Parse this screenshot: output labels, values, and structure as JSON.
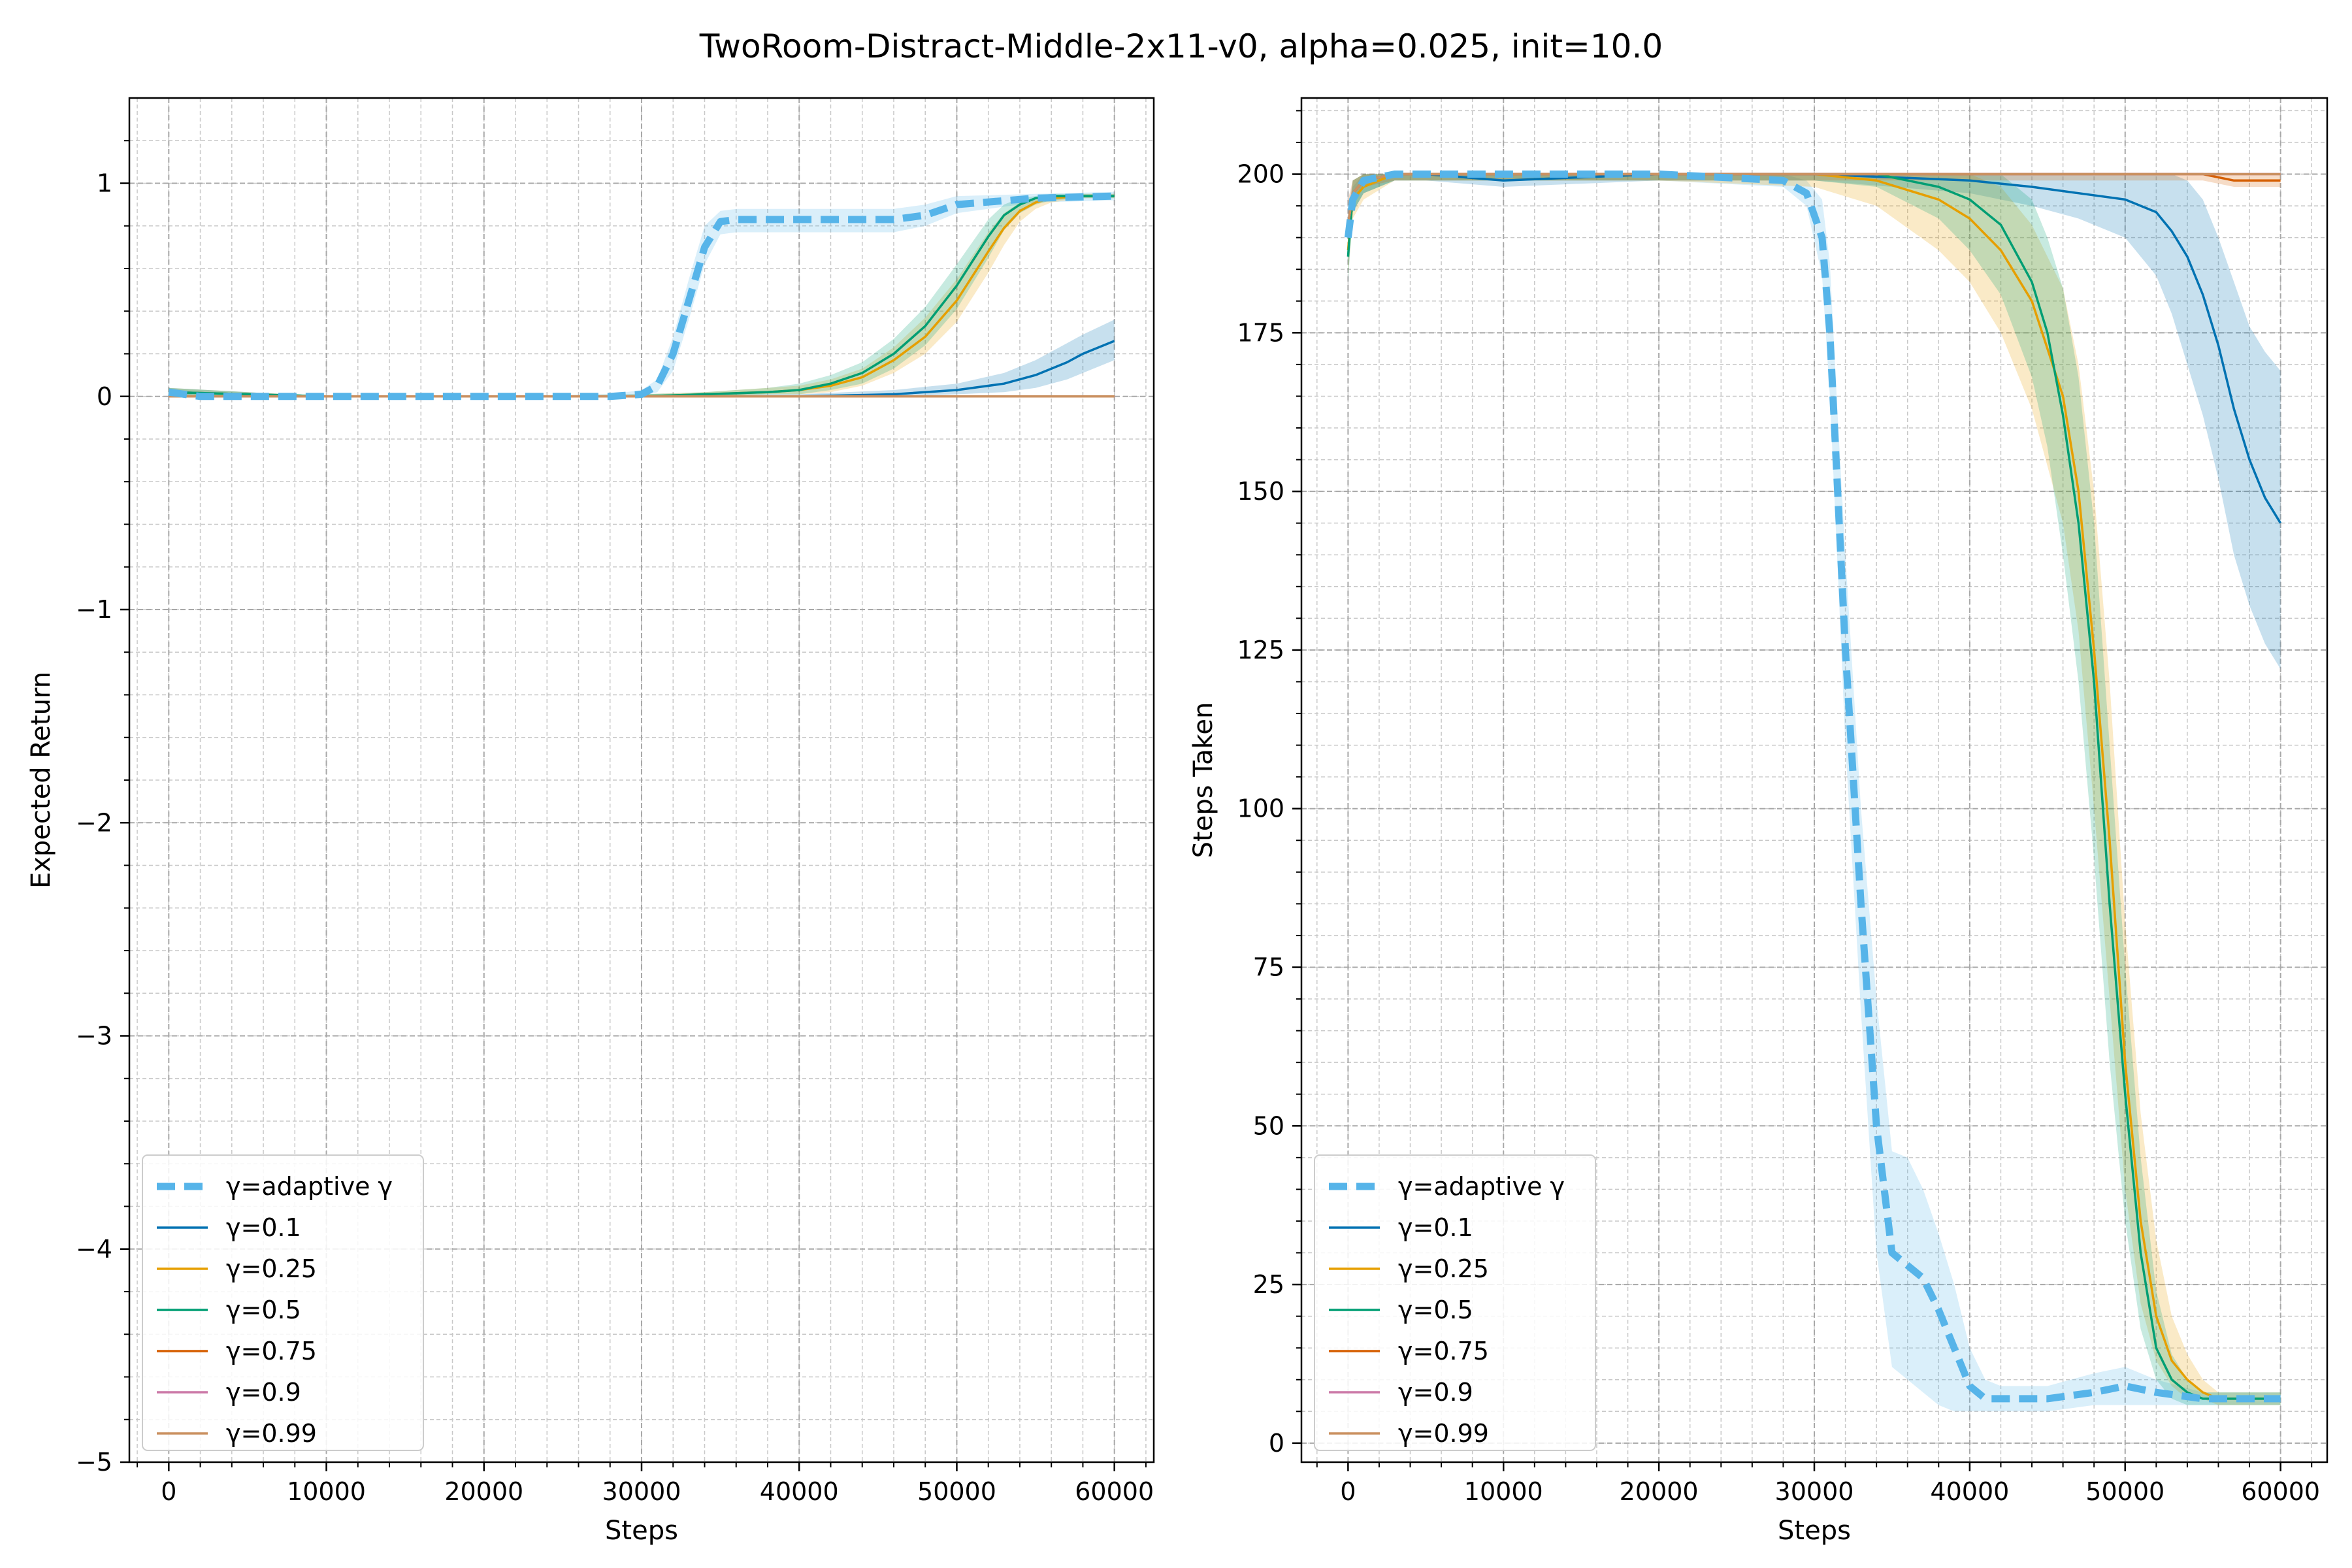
{
  "figure": {
    "title": "TwoRoom-Distract-Middle-2x11-v0, alpha=0.025, init=10.0"
  },
  "legend_entries": [
    {
      "label": "γ=adaptive γ",
      "color": "#56B4E9",
      "style": "dashed"
    },
    {
      "label": "γ=0.1",
      "color": "#0072B2",
      "style": "solid"
    },
    {
      "label": "γ=0.25",
      "color": "#E69F00",
      "style": "solid"
    },
    {
      "label": "γ=0.5",
      "color": "#009E73",
      "style": "solid"
    },
    {
      "label": "γ=0.75",
      "color": "#D55E00",
      "style": "solid"
    },
    {
      "label": "γ=0.9",
      "color": "#CC79A7",
      "style": "solid"
    },
    {
      "label": "γ=0.99",
      "color": "#CA9161",
      "style": "solid"
    }
  ],
  "chart_data": [
    {
      "type": "line",
      "xlabel": "Steps",
      "ylabel": "Expected Return",
      "xlim": [
        -2500,
        62500
      ],
      "ylim": [
        -5,
        1.4
      ],
      "xticks": [
        "0",
        "10000",
        "20000",
        "30000",
        "40000",
        "50000",
        "60000"
      ],
      "yticks": [
        "1",
        "0",
        "−1",
        "−2",
        "−3",
        "−4",
        "−5"
      ],
      "grid": true,
      "legend_position": "lower-left",
      "series": [
        {
          "name": "γ=adaptive γ",
          "color": "#56B4E9",
          "x": [
            0,
            2000,
            10000,
            20000,
            28000,
            30000,
            31000,
            32000,
            33000,
            34000,
            35000,
            36000,
            40000,
            46000,
            48000,
            50000,
            55000,
            60000
          ],
          "y": [
            0.02,
            0.0,
            0.0,
            0.0,
            0.0,
            0.01,
            0.05,
            0.2,
            0.45,
            0.7,
            0.82,
            0.83,
            0.83,
            0.83,
            0.85,
            0.9,
            0.93,
            0.94
          ],
          "band_lower": [
            0.0,
            0.0,
            0.0,
            0.0,
            0.0,
            0.0,
            0.02,
            0.12,
            0.36,
            0.62,
            0.76,
            0.77,
            0.77,
            0.77,
            0.8,
            0.86,
            0.91,
            0.92
          ],
          "band_upper": [
            0.04,
            0.0,
            0.0,
            0.0,
            0.01,
            0.03,
            0.08,
            0.28,
            0.55,
            0.8,
            0.87,
            0.88,
            0.88,
            0.88,
            0.9,
            0.94,
            0.95,
            0.96
          ]
        },
        {
          "name": "γ=0.1",
          "color": "#0072B2",
          "x": [
            0,
            10000,
            20000,
            30000,
            40000,
            46000,
            50000,
            53000,
            55000,
            57000,
            58000,
            60000
          ],
          "y": [
            0.02,
            0.0,
            0.0,
            0.0,
            0.0,
            0.01,
            0.03,
            0.06,
            0.1,
            0.16,
            0.2,
            0.26
          ],
          "band_lower": [
            0.0,
            0.0,
            0.0,
            0.0,
            0.0,
            0.0,
            0.01,
            0.02,
            0.04,
            0.08,
            0.11,
            0.17
          ],
          "band_upper": [
            0.04,
            0.0,
            0.0,
            0.01,
            0.01,
            0.03,
            0.06,
            0.11,
            0.17,
            0.25,
            0.29,
            0.36
          ]
        },
        {
          "name": "γ=0.25",
          "color": "#E69F00",
          "x": [
            0,
            10000,
            20000,
            30000,
            34000,
            38000,
            40000,
            42000,
            44000,
            46000,
            48000,
            50000,
            52000,
            53000,
            54000,
            55000,
            56000,
            58000,
            60000
          ],
          "y": [
            0.02,
            0.0,
            0.0,
            0.0,
            0.01,
            0.02,
            0.03,
            0.05,
            0.09,
            0.17,
            0.28,
            0.45,
            0.68,
            0.79,
            0.87,
            0.91,
            0.93,
            0.94,
            0.94
          ],
          "band_lower": [
            0.0,
            0.0,
            0.0,
            0.0,
            0.0,
            0.01,
            0.01,
            0.02,
            0.05,
            0.11,
            0.2,
            0.35,
            0.58,
            0.71,
            0.82,
            0.88,
            0.91,
            0.93,
            0.93
          ],
          "band_upper": [
            0.04,
            0.0,
            0.0,
            0.01,
            0.02,
            0.04,
            0.05,
            0.08,
            0.13,
            0.23,
            0.37,
            0.55,
            0.77,
            0.86,
            0.91,
            0.93,
            0.94,
            0.95,
            0.95
          ]
        },
        {
          "name": "γ=0.5",
          "color": "#009E73",
          "x": [
            0,
            10000,
            20000,
            30000,
            34000,
            38000,
            40000,
            42000,
            44000,
            46000,
            48000,
            50000,
            52000,
            53000,
            54000,
            55000,
            56000,
            58000,
            60000
          ],
          "y": [
            0.02,
            0.0,
            0.0,
            0.0,
            0.01,
            0.02,
            0.03,
            0.06,
            0.11,
            0.2,
            0.33,
            0.52,
            0.75,
            0.85,
            0.9,
            0.93,
            0.94,
            0.94,
            0.94
          ],
          "band_lower": [
            0.0,
            0.0,
            0.0,
            0.0,
            0.0,
            0.01,
            0.01,
            0.03,
            0.06,
            0.13,
            0.24,
            0.41,
            0.65,
            0.78,
            0.86,
            0.9,
            0.92,
            0.93,
            0.93
          ],
          "band_upper": [
            0.04,
            0.0,
            0.0,
            0.01,
            0.02,
            0.04,
            0.06,
            0.1,
            0.16,
            0.27,
            0.42,
            0.62,
            0.83,
            0.9,
            0.93,
            0.94,
            0.95,
            0.95,
            0.95
          ]
        },
        {
          "name": "γ=0.75",
          "color": "#D55E00",
          "x": [
            0,
            60000
          ],
          "y": [
            0.0,
            0.0
          ]
        },
        {
          "name": "γ=0.9",
          "color": "#CC79A7",
          "x": [
            0,
            60000
          ],
          "y": [
            0.0,
            0.0
          ]
        },
        {
          "name": "γ=0.99",
          "color": "#CA9161",
          "x": [
            0,
            60000
          ],
          "y": [
            0.0,
            0.0
          ]
        }
      ]
    },
    {
      "type": "line",
      "xlabel": "Steps",
      "ylabel": "Steps Taken",
      "xlim": [
        -3000,
        63000
      ],
      "ylim": [
        -3,
        212
      ],
      "xticks": [
        "0",
        "10000",
        "20000",
        "30000",
        "40000",
        "50000",
        "60000"
      ],
      "yticks": [
        "200",
        "175",
        "150",
        "125",
        "100",
        "75",
        "50",
        "25",
        "0"
      ],
      "grid": true,
      "legend_position": "lower-left",
      "series": [
        {
          "name": "γ=adaptive γ",
          "color": "#56B4E9",
          "x": [
            0,
            300,
            1000,
            3000,
            5000,
            10000,
            20000,
            28000,
            29500,
            30500,
            31000,
            31500,
            32000,
            33000,
            34000,
            35000,
            36000,
            37000,
            38000,
            39000,
            40000,
            41000,
            42000,
            45000,
            48000,
            50000,
            52000,
            55000,
            60000
          ],
          "y": [
            190,
            196,
            199,
            200,
            200,
            200,
            200,
            199,
            197,
            190,
            175,
            150,
            125,
            85,
            50,
            30,
            28,
            26,
            21,
            15,
            9,
            7,
            7,
            7,
            8,
            9,
            8,
            7,
            7
          ],
          "band_lower": [
            186,
            194,
            197,
            199,
            199,
            199,
            199,
            198,
            195,
            184,
            165,
            138,
            110,
            68,
            30,
            12,
            10,
            8,
            6,
            5,
            5,
            5,
            5,
            5,
            6,
            6,
            6,
            6,
            6
          ],
          "band_upper": [
            194,
            198,
            200,
            200,
            200,
            200,
            200,
            200,
            199,
            196,
            186,
            162,
            140,
            100,
            70,
            46,
            45,
            40,
            33,
            25,
            15,
            10,
            9,
            9,
            11,
            12,
            10,
            8,
            8
          ]
        },
        {
          "name": "γ=0.1",
          "color": "#0072B2",
          "x": [
            0,
            300,
            1000,
            3000,
            5000,
            10000,
            20000,
            30000,
            40000,
            44000,
            47000,
            50000,
            52000,
            53000,
            54000,
            55000,
            56000,
            57000,
            58000,
            59000,
            60000
          ],
          "y": [
            190,
            197,
            199,
            200,
            200,
            199,
            200,
            200,
            199,
            198,
            197,
            196,
            194,
            191,
            187,
            181,
            173,
            163,
            155,
            149,
            145
          ],
          "band_lower": [
            186,
            194,
            197,
            199,
            199,
            198,
            199,
            199,
            197,
            195,
            193,
            190,
            184,
            178,
            170,
            162,
            152,
            140,
            132,
            126,
            122
          ],
          "band_upper": [
            194,
            199,
            200,
            200,
            200,
            200,
            200,
            200,
            200,
            200,
            200,
            200,
            200,
            200,
            199,
            196,
            190,
            183,
            176,
            172,
            169
          ]
        },
        {
          "name": "γ=0.25",
          "color": "#E69F00",
          "x": [
            0,
            300,
            1000,
            3000,
            5000,
            10000,
            20000,
            30000,
            34000,
            38000,
            40000,
            42000,
            44000,
            46000,
            47000,
            48000,
            49000,
            50000,
            51000,
            52000,
            53000,
            54000,
            55000,
            56000,
            58000,
            60000
          ],
          "y": [
            188,
            196,
            198,
            200,
            200,
            200,
            200,
            200,
            199,
            196,
            193,
            188,
            180,
            165,
            150,
            125,
            95,
            60,
            35,
            20,
            13,
            10,
            8,
            7,
            7,
            7
          ],
          "band_lower": [
            184,
            193,
            196,
            199,
            199,
            199,
            199,
            198,
            195,
            188,
            183,
            175,
            163,
            145,
            128,
            100,
            70,
            40,
            22,
            13,
            9,
            7,
            7,
            6,
            6,
            6
          ],
          "band_upper": [
            192,
            199,
            200,
            200,
            200,
            200,
            200,
            200,
            200,
            200,
            200,
            198,
            192,
            182,
            170,
            150,
            120,
            82,
            52,
            32,
            20,
            14,
            10,
            8,
            8,
            8
          ]
        },
        {
          "name": "γ=0.5",
          "color": "#009E73",
          "x": [
            0,
            300,
            1000,
            3000,
            5000,
            10000,
            20000,
            30000,
            34000,
            38000,
            40000,
            42000,
            44000,
            45000,
            46000,
            47000,
            48000,
            49000,
            50000,
            51000,
            52000,
            53000,
            54000,
            55000,
            58000,
            60000
          ],
          "y": [
            187,
            197,
            199,
            200,
            200,
            200,
            200,
            200,
            200,
            198,
            196,
            192,
            183,
            175,
            162,
            145,
            120,
            85,
            55,
            30,
            15,
            10,
            8,
            7,
            7,
            7
          ],
          "band_lower": [
            183,
            194,
            197,
            199,
            199,
            199,
            199,
            199,
            198,
            193,
            188,
            181,
            168,
            157,
            140,
            120,
            92,
            60,
            35,
            18,
            10,
            7,
            6,
            6,
            6,
            6
          ],
          "band_upper": [
            191,
            199,
            200,
            200,
            200,
            200,
            200,
            200,
            200,
            200,
            200,
            200,
            196,
            190,
            182,
            168,
            145,
            110,
            75,
            45,
            24,
            14,
            10,
            8,
            8,
            8
          ]
        },
        {
          "name": "γ=0.75",
          "color": "#D55E00",
          "x": [
            0,
            300,
            1000,
            3000,
            5000,
            10000,
            20000,
            30000,
            40000,
            50000,
            55000,
            57000,
            60000
          ],
          "y": [
            192,
            197,
            199,
            200,
            200,
            200,
            200,
            200,
            200,
            200,
            200,
            199,
            199
          ],
          "band_lower": [
            188,
            195,
            198,
            199,
            199,
            199,
            199,
            199,
            199,
            199,
            199,
            198,
            198
          ],
          "band_upper": [
            196,
            199,
            200,
            200,
            200,
            200,
            200,
            200,
            200,
            200,
            200,
            200,
            200
          ]
        },
        {
          "name": "γ=0.9",
          "color": "#CC79A7",
          "x": [
            0,
            300,
            1000,
            3000,
            5000,
            60000
          ],
          "y": [
            192,
            197,
            199,
            200,
            200,
            200
          ]
        },
        {
          "name": "γ=0.99",
          "color": "#CA9161",
          "x": [
            0,
            300,
            1000,
            3000,
            5000,
            60000
          ],
          "y": [
            192,
            197,
            199,
            200,
            200,
            200
          ]
        }
      ]
    }
  ]
}
